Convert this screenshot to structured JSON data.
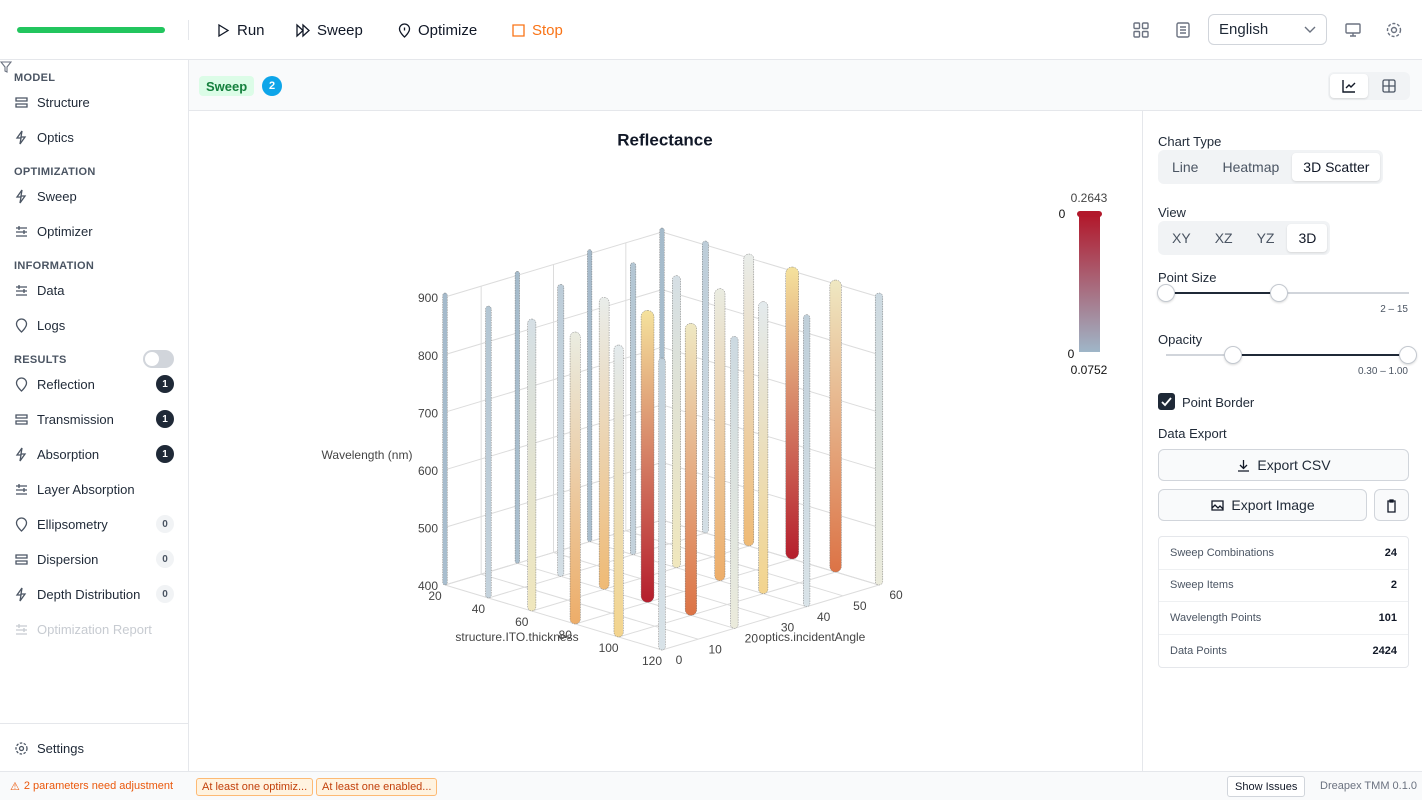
{
  "toolbar": {
    "actions": [
      {
        "label": "Run"
      },
      {
        "label": "Sweep"
      },
      {
        "label": "Optimize"
      },
      {
        "label": "Stop"
      }
    ],
    "language": "English"
  },
  "sidebar": {
    "sections": [
      {
        "title": "MODEL",
        "items": [
          {
            "label": "Structure"
          },
          {
            "label": "Optics"
          }
        ]
      },
      {
        "title": "OPTIMIZATION",
        "items": [
          {
            "label": "Sweep"
          },
          {
            "label": "Optimizer"
          }
        ]
      },
      {
        "title": "INFORMATION",
        "items": [
          {
            "label": "Data"
          },
          {
            "label": "Logs"
          }
        ]
      },
      {
        "title": "RESULTS",
        "filter": false,
        "items": [
          {
            "label": "Reflection",
            "count": 1
          },
          {
            "label": "Transmission",
            "count": 1
          },
          {
            "label": "Absorption",
            "count": 1
          },
          {
            "label": "Layer Absorption"
          },
          {
            "label": "Ellipsometry",
            "count": 0
          },
          {
            "label": "Dispersion",
            "count": 0
          },
          {
            "label": "Depth Distribution",
            "count": 0
          },
          {
            "label": "Optimization Report",
            "disabled": true
          }
        ]
      }
    ],
    "settings": "Settings"
  },
  "tab": {
    "label": "Sweep",
    "count": 2
  },
  "chart_data": {
    "type": "scatter3d",
    "title": "Reflectance",
    "x_label": "structure.ITO.thickness",
    "y_label": "optics.incidentAngle",
    "z_label": "Wavelength (nm)",
    "xlim": [
      20,
      120
    ],
    "xticks": [
      20,
      40,
      60,
      80,
      100,
      120
    ],
    "ylim": [
      0,
      60
    ],
    "yticks": [
      0,
      10,
      20,
      30,
      40,
      50,
      60
    ],
    "zlim": [
      400,
      900
    ],
    "zticks": [
      400,
      500,
      600,
      700,
      800,
      900
    ],
    "colorbar": {
      "max": 0.2643,
      "min": 0.0752,
      "ticks": [
        0,
        0
      ]
    }
  },
  "panel": {
    "chart_type": {
      "label": "Chart Type",
      "options": [
        "Line",
        "Heatmap",
        "3D Scatter"
      ],
      "selected": 2
    },
    "view": {
      "label": "View",
      "options": [
        "XY",
        "XZ",
        "YZ",
        "3D"
      ],
      "selected": 3
    },
    "point_size": {
      "label": "Point Size",
      "range": "2 – 15"
    },
    "opacity": {
      "label": "Opacity",
      "range": "0.30 – 1.00"
    },
    "point_border": {
      "label": "Point Border",
      "checked": true
    },
    "export": {
      "label": "Data Export",
      "csv": "Export CSV",
      "image": "Export Image"
    },
    "stats": [
      {
        "label": "Sweep Combinations",
        "value": 24
      },
      {
        "label": "Sweep Items",
        "value": 2
      },
      {
        "label": "Wavelength Points",
        "value": 101
      },
      {
        "label": "Data Points",
        "value": 2424
      }
    ]
  },
  "status": {
    "warning": "2 parameters need adjustment",
    "chips": [
      "At least one optimiz...",
      "At least one enabled..."
    ],
    "show_issues": "Show Issues",
    "version": "Dreapex TMM 0.1.0"
  }
}
